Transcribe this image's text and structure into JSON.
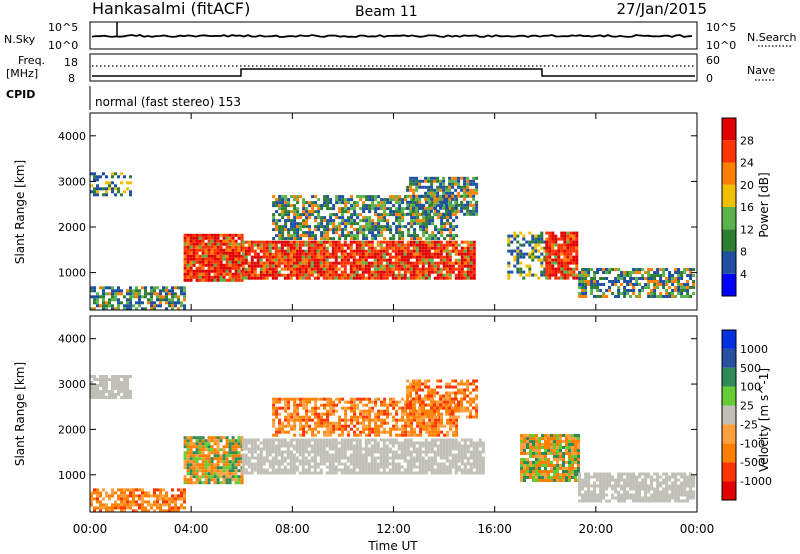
{
  "header": {
    "station": "Hankasalmi (fitACF)",
    "beam": "Beam 11",
    "date": "27/Jan/2015"
  },
  "panels": {
    "nsky_label": "N.Sky",
    "nsearch_label": "N.Search",
    "nsky_ticks": [
      "10^5",
      "10^0"
    ],
    "nsearch_ticks": [
      "10^5",
      "10^0"
    ],
    "freq_label_1": "Freq.",
    "freq_label_2": "[MHz]",
    "freq_ticks": [
      "18",
      "8"
    ],
    "nave_label": "Nave",
    "nave_ticks": [
      "60",
      "0"
    ],
    "cpid_label": "CPID",
    "cpid_text": "normal (fast stereo) 153"
  },
  "colors": {
    "scatter_gray": "#c0c0b8",
    "power_scale": [
      "#0000ff",
      "#1f4fa0",
      "#2e7d32",
      "#5ab34a",
      "#f0c000",
      "#ff8000",
      "#ff3300",
      "#e00000"
    ],
    "velocity_scale": [
      "#e00000",
      "#ff3300",
      "#ff8000",
      "#ffa040",
      "#c0c0b8",
      "#66cc33",
      "#2e8b57",
      "#2850a0",
      "#0030e0"
    ]
  },
  "chart_data": [
    {
      "type": "heatmap",
      "title": "",
      "xlabel": "Time UT",
      "ylabel": "Slant Range [km]",
      "x_ticks": [
        "00:00",
        "04:00",
        "08:00",
        "12:00",
        "16:00",
        "20:00",
        "00:00"
      ],
      "y_ticks": [
        "1000",
        "2000",
        "3000",
        "4000"
      ],
      "ylim": [
        180,
        4500
      ],
      "colorbar_label": "Power [dB]",
      "colorbar_ticks": [
        "4",
        "8",
        "12",
        "16",
        "20",
        "24",
        "28"
      ],
      "regions": [
        {
          "t": [
            3.7,
            6.0
          ],
          "r": [
            850,
            1850
          ],
          "level": "strong"
        },
        {
          "t": [
            6.0,
            15.2
          ],
          "r": [
            900,
            1700
          ],
          "level": "strong"
        },
        {
          "t": [
            7.2,
            14.5
          ],
          "r": [
            1750,
            2700
          ],
          "level": "medium"
        },
        {
          "t": [
            12.5,
            15.3
          ],
          "r": [
            2300,
            3100
          ],
          "level": "medium"
        },
        {
          "t": [
            16.5,
            18.0
          ],
          "r": [
            900,
            1900
          ],
          "level": "weak"
        },
        {
          "t": [
            18.0,
            19.3
          ],
          "r": [
            900,
            1900
          ],
          "level": "strong"
        },
        {
          "t": [
            19.3,
            23.9
          ],
          "r": [
            500,
            1100
          ],
          "level": "medium"
        },
        {
          "t": [
            0.0,
            3.7
          ],
          "r": [
            200,
            700
          ],
          "level": "medium"
        },
        {
          "t": [
            0.0,
            1.6
          ],
          "r": [
            2700,
            3200
          ],
          "level": "weak"
        }
      ]
    },
    {
      "type": "heatmap",
      "title": "",
      "xlabel": "Time UT",
      "ylabel": "Slant Range [km]",
      "x_ticks": [
        "00:00",
        "04:00",
        "08:00",
        "12:00",
        "16:00",
        "20:00",
        "00:00"
      ],
      "y_ticks": [
        "1000",
        "2000",
        "3000",
        "4000"
      ],
      "ylim": [
        180,
        4500
      ],
      "colorbar_label": "Velocity [m s^-1]",
      "colorbar_ticks": [
        "1000",
        "500",
        "100",
        "25",
        "-25",
        "-100",
        "-500",
        "-1000"
      ],
      "regions": [
        {
          "t": [
            3.7,
            6.0
          ],
          "r": [
            850,
            1850
          ],
          "level": "mixed"
        },
        {
          "t": [
            6.0,
            15.5
          ],
          "r": [
            1050,
            1800
          ],
          "level": "ground"
        },
        {
          "t": [
            7.2,
            14.5
          ],
          "r": [
            1900,
            2700
          ],
          "level": "away"
        },
        {
          "t": [
            12.5,
            15.3
          ],
          "r": [
            2300,
            3100
          ],
          "level": "away"
        },
        {
          "t": [
            17.0,
            19.3
          ],
          "r": [
            900,
            1900
          ],
          "level": "mixed"
        },
        {
          "t": [
            19.3,
            23.9
          ],
          "r": [
            450,
            1050
          ],
          "level": "ground"
        },
        {
          "t": [
            0.0,
            3.7
          ],
          "r": [
            200,
            700
          ],
          "level": "away"
        },
        {
          "t": [
            0.0,
            1.6
          ],
          "r": [
            2700,
            3200
          ],
          "level": "ground"
        }
      ]
    }
  ]
}
